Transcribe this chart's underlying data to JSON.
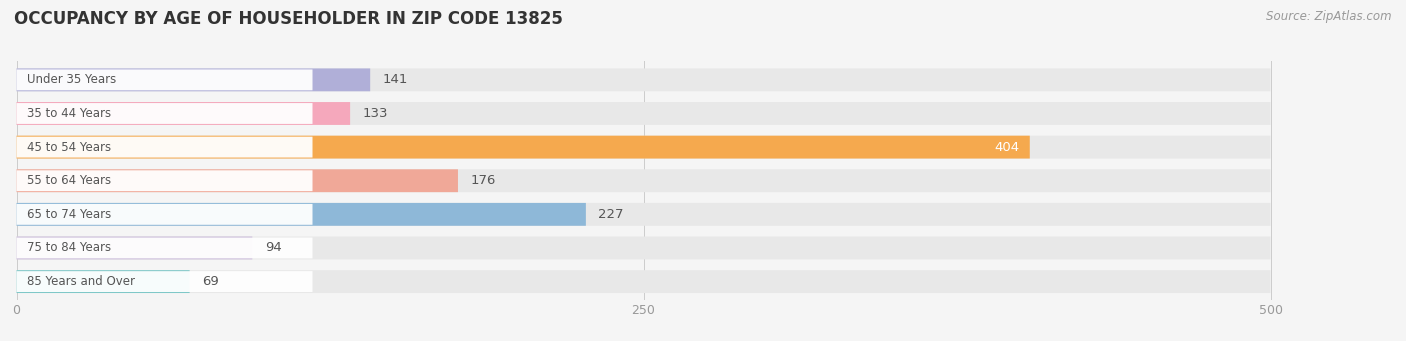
{
  "title": "OCCUPANCY BY AGE OF HOUSEHOLDER IN ZIP CODE 13825",
  "source": "Source: ZipAtlas.com",
  "categories": [
    "Under 35 Years",
    "35 to 44 Years",
    "45 to 54 Years",
    "55 to 64 Years",
    "65 to 74 Years",
    "75 to 84 Years",
    "85 Years and Over"
  ],
  "values": [
    141,
    133,
    404,
    176,
    227,
    94,
    69
  ],
  "bar_colors": [
    "#b0afd8",
    "#f5a8bc",
    "#f5a94e",
    "#f0a898",
    "#8eb8d8",
    "#c8b8d8",
    "#7ec8c8"
  ],
  "label_colors": [
    "#666666",
    "#666666",
    "#ffffff",
    "#666666",
    "#666666",
    "#666666",
    "#666666"
  ],
  "xlim": [
    0,
    500
  ],
  "xticks": [
    0,
    250,
    500
  ],
  "background_color": "#f5f5f5",
  "bar_bg_color": "#e8e8e8",
  "title_fontsize": 12,
  "source_fontsize": 8.5,
  "value_fontsize": 9.5,
  "cat_fontsize": 8.5,
  "bar_height": 0.68,
  "figsize": [
    14.06,
    3.41
  ]
}
